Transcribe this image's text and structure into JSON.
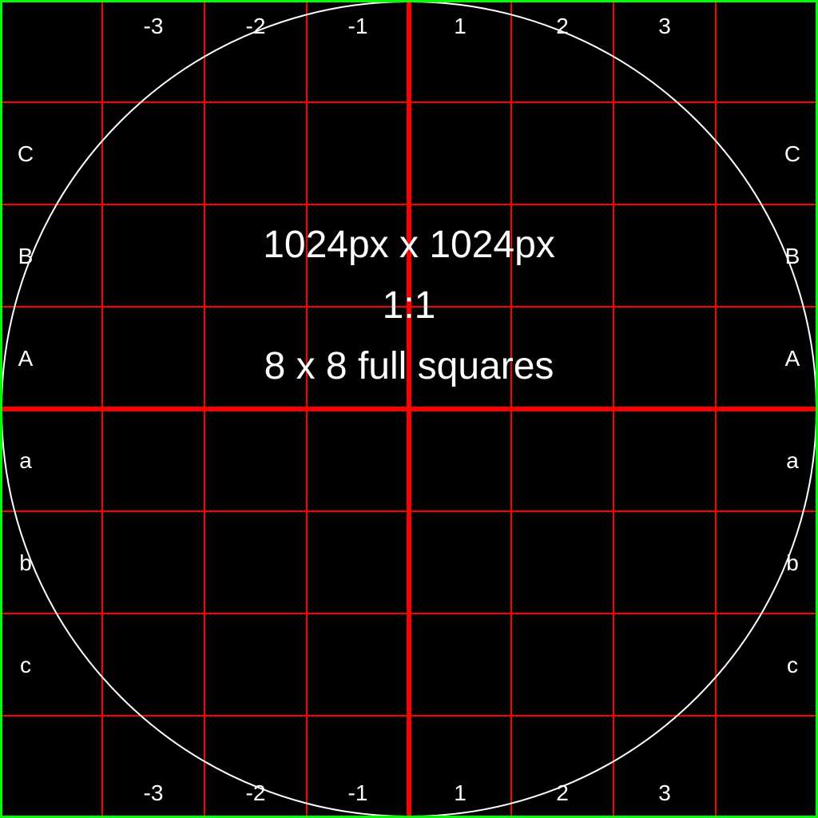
{
  "colors": {
    "background": "#000000",
    "border": "#00ff00",
    "grid": "#ff0000",
    "circle": "#ffffff",
    "text": "#ffffff"
  },
  "grid": {
    "divisions": 8,
    "axes": "center"
  },
  "info": {
    "size": "1024px x 1024px",
    "ratio": "1:1",
    "squares": "8 x 8 full squares"
  },
  "column_labels": [
    "-3",
    "-2",
    "-1",
    "1",
    "2",
    "3"
  ],
  "row_labels": [
    "C",
    "B",
    "A",
    "a",
    "b",
    "c"
  ]
}
